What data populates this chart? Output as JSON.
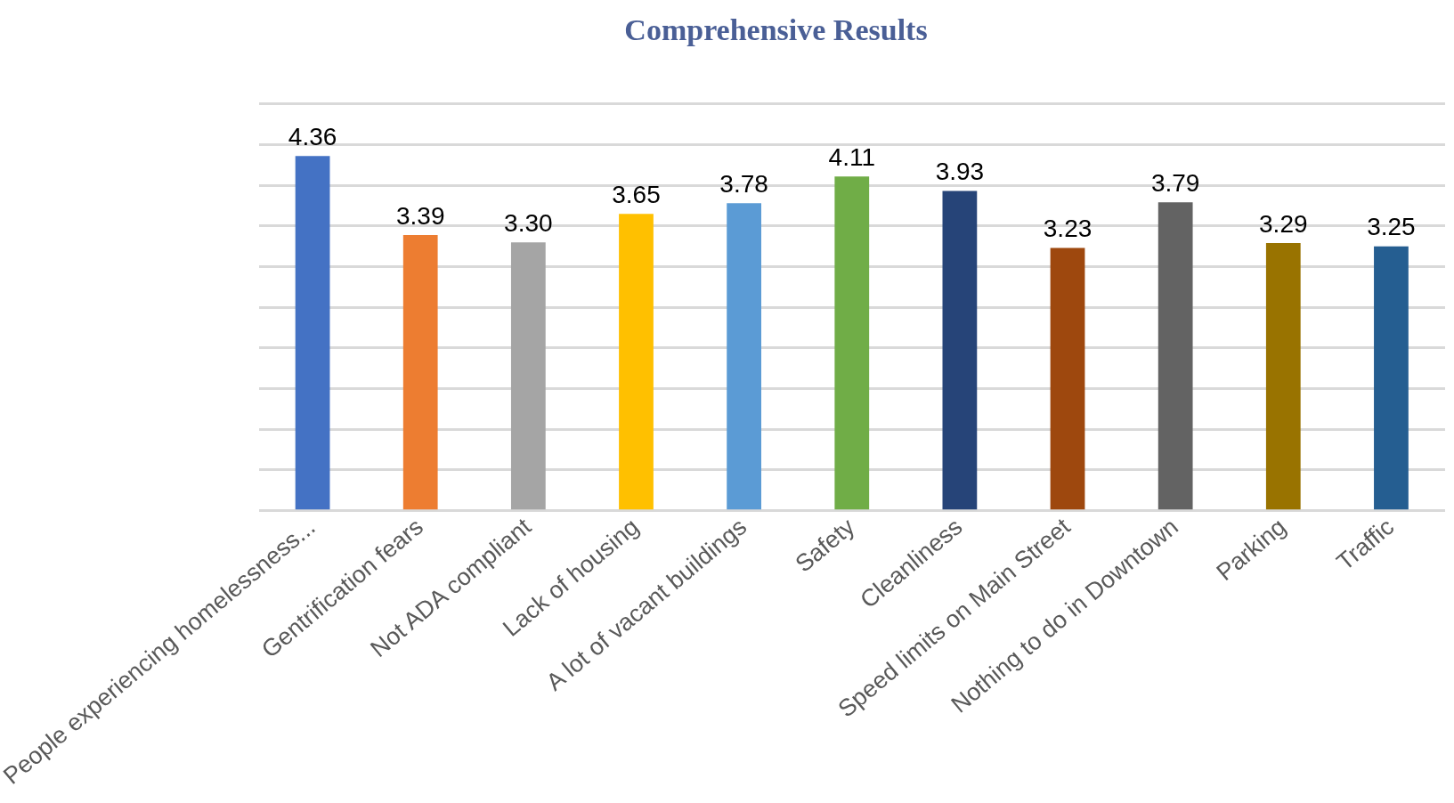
{
  "chart_data": {
    "type": "bar",
    "title": "Comprehensive Results",
    "categories": [
      "People experiencing homelessness...",
      "Gentrification fears",
      "Not ADA compliant",
      "Lack of housing",
      "A lot of vacant buildings",
      "Safety",
      "Cleanliness",
      "Speed limits on Main Street",
      "Nothing to do in Downtown",
      "Parking",
      "Traffic"
    ],
    "values": [
      4.36,
      3.39,
      3.3,
      3.65,
      3.78,
      4.11,
      3.93,
      3.23,
      3.79,
      3.29,
      3.25
    ],
    "colors": [
      "#4472c4",
      "#ed7d31",
      "#a5a5a5",
      "#ffc000",
      "#5b9bd5",
      "#70ad47",
      "#264478",
      "#9e480e",
      "#636363",
      "#997300",
      "#255e91"
    ],
    "ylim": [
      0,
      5
    ],
    "yticks": [
      {
        "value": 0,
        "label": null
      },
      {
        "value": 0.5,
        "label": null
      },
      {
        "value": 1,
        "label": null
      },
      {
        "value": 1.5,
        "label": null
      },
      {
        "value": 2,
        "label": null
      },
      {
        "value": 2.5,
        "label": null
      },
      {
        "value": 3,
        "label": null
      },
      {
        "value": 3.5,
        "label": null
      },
      {
        "value": 4,
        "label": null
      },
      {
        "value": 4.5,
        "label": null
      },
      {
        "value": 5,
        "label": null
      }
    ],
    "value_labels": [
      "4.36",
      "3.39",
      "3.30",
      "3.65",
      "3.78",
      "4.11",
      "3.93",
      "3.23",
      "3.79",
      "3.29",
      "3.25"
    ],
    "grid": "y",
    "tick_labels": "x"
  }
}
